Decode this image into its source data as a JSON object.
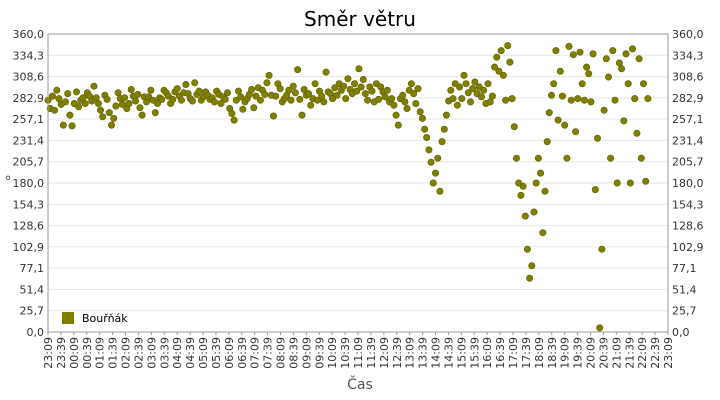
{
  "chart_data": {
    "type": "scatter",
    "title": "Směr větru",
    "xlabel": "Čas",
    "ylabel": "°",
    "ylim": [
      0,
      360
    ],
    "y_ticks": [
      "0,0",
      "25,7",
      "51,4",
      "77,1",
      "102,9",
      "128,6",
      "154,3",
      "180,0",
      "205,7",
      "231,4",
      "257,1",
      "282,9",
      "308,6",
      "334,3",
      "360,0"
    ],
    "x_ticks": [
      "23:09",
      "23:39",
      "00:09",
      "00:39",
      "01:09",
      "01:39",
      "02:09",
      "02:39",
      "03:09",
      "03:39",
      "04:09",
      "04:39",
      "05:09",
      "05:39",
      "06:09",
      "06:39",
      "07:09",
      "07:39",
      "08:09",
      "08:39",
      "09:09",
      "09:39",
      "10:09",
      "10:39",
      "11:09",
      "11:39",
      "12:09",
      "12:39",
      "13:09",
      "13:39",
      "14:09",
      "14:39",
      "15:09",
      "15:39",
      "16:09",
      "16:39",
      "17:09",
      "17:39",
      "18:09",
      "18:39",
      "19:09",
      "19:39",
      "20:09",
      "20:39",
      "21:09",
      "21:39",
      "22:09",
      "22:39",
      "23:09"
    ],
    "grid": true,
    "legend_position": "bottom-left",
    "series": [
      {
        "name": "Bouřňák",
        "color": "#808000",
        "points": [
          [
            0,
            280
          ],
          [
            0.2,
            270
          ],
          [
            0.4,
            285
          ],
          [
            0.6,
            268
          ],
          [
            0.8,
            292
          ],
          [
            1,
            282
          ],
          [
            1.2,
            275
          ],
          [
            1.4,
            250
          ],
          [
            1.6,
            278
          ],
          [
            1.8,
            288
          ],
          [
            2,
            262
          ],
          [
            2.2,
            249
          ],
          [
            2.4,
            276
          ],
          [
            2.6,
            290
          ],
          [
            2.8,
            272
          ],
          [
            3,
            280
          ],
          [
            3.2,
            283
          ],
          [
            3.4,
            276
          ],
          [
            3.6,
            289
          ],
          [
            3.8,
            285
          ],
          [
            4,
            279
          ],
          [
            4.2,
            297
          ],
          [
            4.4,
            283
          ],
          [
            4.6,
            276
          ],
          [
            4.8,
            268
          ],
          [
            5,
            260
          ],
          [
            5.2,
            286
          ],
          [
            5.4,
            281
          ],
          [
            5.6,
            265
          ],
          [
            5.8,
            250
          ],
          [
            6,
            258
          ],
          [
            6.2,
            273
          ],
          [
            6.4,
            289
          ],
          [
            6.6,
            282
          ],
          [
            6.8,
            275
          ],
          [
            7,
            283
          ],
          [
            7.2,
            270
          ],
          [
            7.4,
            276
          ],
          [
            7.6,
            293
          ],
          [
            7.8,
            285
          ],
          [
            8,
            279
          ],
          [
            8.2,
            287
          ],
          [
            8.4,
            271
          ],
          [
            8.6,
            262
          ],
          [
            8.8,
            284
          ],
          [
            9,
            278
          ],
          [
            9.2,
            284
          ],
          [
            9.4,
            292
          ],
          [
            9.6,
            280
          ],
          [
            9.8,
            265
          ],
          [
            10,
            276
          ],
          [
            10.2,
            283
          ],
          [
            10.4,
            281
          ],
          [
            10.6,
            292
          ],
          [
            10.8,
            289
          ],
          [
            11,
            285
          ],
          [
            11.2,
            276
          ],
          [
            11.4,
            281
          ],
          [
            11.6,
            290
          ],
          [
            11.8,
            294
          ],
          [
            12,
            285
          ],
          [
            12.2,
            280
          ],
          [
            12.4,
            289
          ],
          [
            12.6,
            299
          ],
          [
            12.8,
            288
          ],
          [
            13,
            282
          ],
          [
            13.2,
            279
          ],
          [
            13.4,
            301
          ],
          [
            13.6,
            287
          ],
          [
            13.8,
            291
          ],
          [
            14,
            280
          ],
          [
            14.2,
            284
          ],
          [
            14.4,
            290
          ],
          [
            14.6,
            286
          ],
          [
            14.8,
            281
          ],
          [
            15,
            283
          ],
          [
            15.2,
            278
          ],
          [
            15.4,
            291
          ],
          [
            15.6,
            287
          ],
          [
            15.8,
            276
          ],
          [
            16,
            284
          ],
          [
            16.2,
            281
          ],
          [
            16.4,
            289
          ],
          [
            16.6,
            270
          ],
          [
            16.8,
            264
          ],
          [
            17,
            256
          ],
          [
            17.2,
            280
          ],
          [
            17.4,
            291
          ],
          [
            17.6,
            284
          ],
          [
            17.8,
            269
          ],
          [
            18,
            278
          ],
          [
            18.2,
            282
          ],
          [
            18.4,
            287
          ],
          [
            18.6,
            293
          ],
          [
            18.8,
            271
          ],
          [
            19,
            285
          ],
          [
            19.2,
            295
          ],
          [
            19.4,
            280
          ],
          [
            19.6,
            292
          ],
          [
            19.8,
            287
          ],
          [
            20,
            301
          ],
          [
            20.2,
            310
          ],
          [
            20.4,
            286
          ],
          [
            20.6,
            261
          ],
          [
            20.8,
            285
          ],
          [
            21,
            300
          ],
          [
            21.2,
            294
          ],
          [
            21.4,
            278
          ],
          [
            21.6,
            282
          ],
          [
            21.8,
            286
          ],
          [
            22,
            292
          ],
          [
            22.2,
            280
          ],
          [
            22.4,
            297
          ],
          [
            22.6,
            289
          ],
          [
            22.8,
            317
          ],
          [
            23,
            281
          ],
          [
            23.2,
            262
          ],
          [
            23.4,
            293
          ],
          [
            23.6,
            286
          ],
          [
            23.8,
            288
          ],
          [
            24,
            274
          ],
          [
            24.2,
            282
          ],
          [
            24.4,
            300
          ],
          [
            24.6,
            280
          ],
          [
            24.8,
            291
          ],
          [
            25,
            285
          ],
          [
            25.2,
            278
          ],
          [
            25.4,
            314
          ],
          [
            25.6,
            290
          ],
          [
            25.8,
            288
          ],
          [
            26,
            282
          ],
          [
            26.2,
            295
          ],
          [
            26.4,
            286
          ],
          [
            26.6,
            300
          ],
          [
            26.8,
            292
          ],
          [
            27,
            297
          ],
          [
            27.2,
            282
          ],
          [
            27.4,
            306
          ],
          [
            27.6,
            293
          ],
          [
            27.8,
            288
          ],
          [
            28,
            300
          ],
          [
            28.2,
            291
          ],
          [
            28.4,
            318
          ],
          [
            28.6,
            296
          ],
          [
            28.8,
            305
          ],
          [
            29,
            288
          ],
          [
            29.2,
            280
          ],
          [
            29.4,
            296
          ],
          [
            29.6,
            291
          ],
          [
            29.8,
            278
          ],
          [
            30,
            300
          ],
          [
            30.2,
            281
          ],
          [
            30.4,
            296
          ],
          [
            30.6,
            290
          ],
          [
            30.8,
            284
          ],
          [
            31,
            292
          ],
          [
            31.2,
            278
          ],
          [
            31.4,
            282
          ],
          [
            31.6,
            274
          ],
          [
            31.8,
            262
          ],
          [
            32,
            250
          ],
          [
            32.2,
            282
          ],
          [
            32.4,
            286
          ],
          [
            32.6,
            278
          ],
          [
            32.8,
            270
          ],
          [
            33,
            292
          ],
          [
            33.2,
            300
          ],
          [
            33.4,
            288
          ],
          [
            33.6,
            276
          ],
          [
            33.8,
            294
          ],
          [
            34,
            266
          ],
          [
            34.2,
            258
          ],
          [
            34.4,
            245
          ],
          [
            34.6,
            235
          ],
          [
            34.8,
            220
          ],
          [
            35,
            205
          ],
          [
            35.2,
            180
          ],
          [
            35.4,
            192
          ],
          [
            35.6,
            210
          ],
          [
            35.8,
            170
          ],
          [
            36,
            230
          ],
          [
            36.2,
            245
          ],
          [
            36.4,
            262
          ],
          [
            36.6,
            279
          ],
          [
            36.8,
            292
          ],
          [
            37,
            282
          ],
          [
            37.2,
            300
          ],
          [
            37.4,
            274
          ],
          [
            37.6,
            296
          ],
          [
            37.8,
            282
          ],
          [
            38,
            310
          ],
          [
            38.2,
            300
          ],
          [
            38.4,
            289
          ],
          [
            38.6,
            278
          ],
          [
            38.8,
            294
          ],
          [
            39,
            302
          ],
          [
            39.2,
            288
          ],
          [
            39.4,
            296
          ],
          [
            39.6,
            284
          ],
          [
            39.8,
            292
          ],
          [
            40,
            276
          ],
          [
            40.2,
            300
          ],
          [
            40.4,
            278
          ],
          [
            40.6,
            285
          ],
          [
            40.8,
            320
          ],
          [
            41,
            332
          ],
          [
            41.2,
            315
          ],
          [
            41.4,
            340
          ],
          [
            41.6,
            310
          ],
          [
            41.8,
            280
          ],
          [
            42,
            346
          ],
          [
            42.2,
            326
          ],
          [
            42.4,
            282
          ],
          [
            42.6,
            248
          ],
          [
            42.8,
            210
          ],
          [
            43,
            180
          ],
          [
            43.2,
            165
          ],
          [
            43.4,
            176
          ],
          [
            43.6,
            140
          ],
          [
            43.8,
            100
          ],
          [
            44,
            65
          ],
          [
            44.2,
            80
          ],
          [
            44.4,
            145
          ],
          [
            44.6,
            180
          ],
          [
            44.8,
            210
          ],
          [
            45,
            192
          ],
          [
            45.2,
            120
          ],
          [
            45.4,
            170
          ],
          [
            45.6,
            230
          ],
          [
            45.8,
            265
          ],
          [
            46,
            286
          ],
          [
            46.2,
            300
          ],
          [
            46.4,
            340
          ],
          [
            46.6,
            256
          ],
          [
            46.8,
            315
          ],
          [
            47,
            285
          ],
          [
            47.2,
            250
          ],
          [
            47.4,
            210
          ],
          [
            47.6,
            345
          ],
          [
            47.8,
            280
          ],
          [
            48,
            335
          ],
          [
            48.2,
            242
          ],
          [
            48.4,
            282
          ],
          [
            48.6,
            338
          ],
          [
            48.8,
            300
          ],
          [
            49,
            280
          ],
          [
            49.2,
            320
          ],
          [
            49.4,
            312
          ],
          [
            49.6,
            278
          ],
          [
            49.8,
            336
          ],
          [
            50,
            172
          ],
          [
            50.2,
            234
          ],
          [
            50.4,
            5
          ],
          [
            50.6,
            100
          ],
          [
            50.8,
            268
          ],
          [
            51,
            330
          ],
          [
            51.2,
            308
          ],
          [
            51.4,
            210
          ],
          [
            51.6,
            340
          ],
          [
            51.8,
            280
          ],
          [
            52,
            180
          ],
          [
            52.2,
            325
          ],
          [
            52.4,
            318
          ],
          [
            52.6,
            255
          ],
          [
            52.8,
            336
          ],
          [
            53,
            300
          ],
          [
            53.2,
            180
          ],
          [
            53.4,
            342
          ],
          [
            53.6,
            282
          ],
          [
            53.8,
            240
          ],
          [
            54,
            330
          ],
          [
            54.2,
            210
          ],
          [
            54.4,
            300
          ],
          [
            54.6,
            182
          ],
          [
            54.8,
            282
          ]
        ]
      }
    ]
  }
}
